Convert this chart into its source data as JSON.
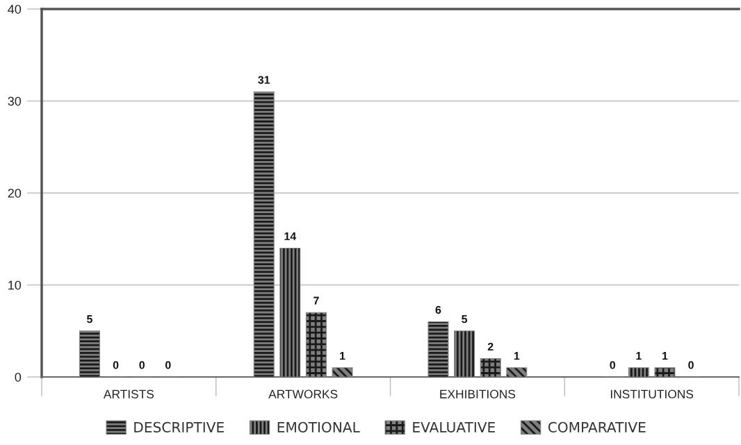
{
  "chart_data": {
    "type": "bar",
    "categories": [
      "ARTISTS",
      "ARTWORKS",
      "EXHIBITIONS",
      "INSTITUTIONS"
    ],
    "series": [
      {
        "name": "DESCRIPTIVE",
        "color": "#7f7f7f",
        "values": [
          5,
          31,
          6,
          0
        ]
      },
      {
        "name": "EMOTIONAL",
        "color": "#7f7f7f",
        "values": [
          0,
          14,
          5,
          1
        ]
      },
      {
        "name": "EVALUATIVE",
        "color": "#7f7f7f",
        "values": [
          0,
          7,
          2,
          1
        ]
      },
      {
        "name": "COMPARATIVE",
        "color": "#7f7f7f",
        "values": [
          0,
          1,
          1,
          0
        ]
      }
    ],
    "ylim": [
      0,
      40
    ],
    "yticks": [
      0,
      10,
      20,
      30,
      40
    ],
    "grid": "y",
    "legend": "bottom",
    "data_labels": true
  }
}
